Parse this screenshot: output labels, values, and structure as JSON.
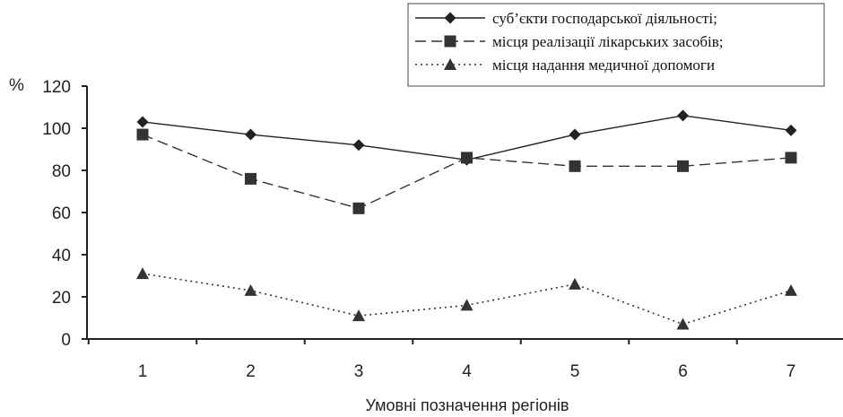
{
  "chart_data": {
    "type": "line",
    "x": [
      1,
      2,
      3,
      4,
      5,
      6,
      7
    ],
    "xlabel": "Умовні позначення регіонів",
    "ylabel": "%",
    "ylim": [
      0,
      120
    ],
    "yticks": [
      0,
      20,
      40,
      60,
      80,
      100,
      120
    ],
    "grid": false,
    "legend_position": "top-right",
    "series": [
      {
        "name": "суб’єкти господарської діяльності;",
        "values": [
          103,
          97,
          92,
          85,
          97,
          106,
          99
        ],
        "marker": "diamond",
        "line_style": "solid",
        "color": "#222222"
      },
      {
        "name": "місця реалізації лікарських засобів;",
        "values": [
          97,
          76,
          62,
          86,
          82,
          82,
          86
        ],
        "marker": "square",
        "line_style": "dashed",
        "color": "#333333"
      },
      {
        "name": "місця надання медичної допомоги",
        "values": [
          31,
          23,
          11,
          16,
          26,
          7,
          23
        ],
        "marker": "triangle",
        "line_style": "dotted",
        "color": "#333333"
      }
    ]
  }
}
